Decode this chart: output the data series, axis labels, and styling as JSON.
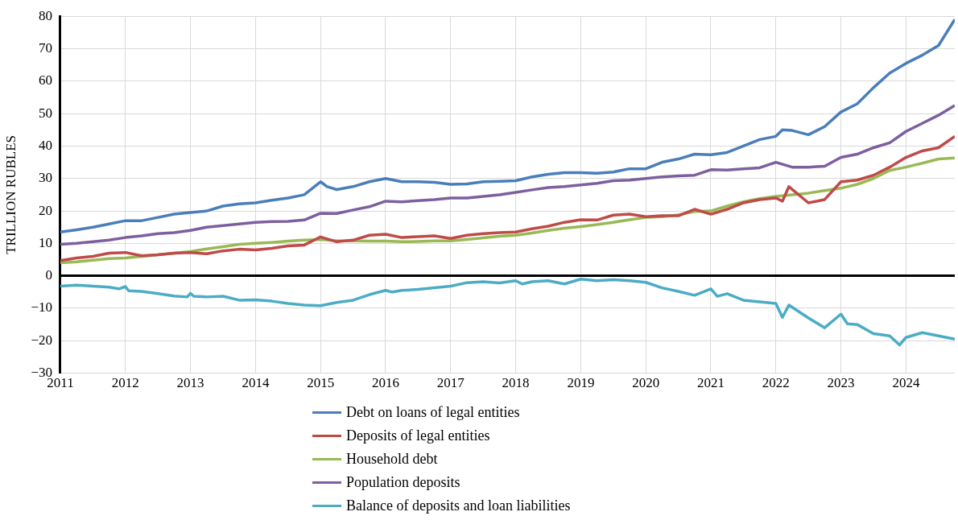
{
  "chart_data": {
    "type": "line",
    "ylabel": "TRILLION RUBLES",
    "xlim": [
      2011,
      2024.75
    ],
    "xticks": [
      2011,
      2012,
      2013,
      2014,
      2015,
      2016,
      2017,
      2018,
      2019,
      2020,
      2021,
      2022,
      2023,
      2024
    ],
    "ylim": [
      -30,
      80
    ],
    "yticks": [
      -30,
      -20,
      -10,
      0,
      10,
      20,
      30,
      40,
      50,
      60,
      70,
      80
    ],
    "grid": true,
    "legend": "bottom",
    "marker": "none",
    "line_style": "solid",
    "series": [
      {
        "name": "Debt on loans of legal entities",
        "color": "#4a7ebb",
        "x": [
          2011,
          2011.25,
          2011.5,
          2011.75,
          2012,
          2012.25,
          2012.5,
          2012.75,
          2013,
          2013.25,
          2013.5,
          2013.75,
          2014,
          2014.25,
          2014.5,
          2014.75,
          2015,
          2015.1,
          2015.25,
          2015.5,
          2015.75,
          2016,
          2016.25,
          2016.5,
          2016.75,
          2017,
          2017.25,
          2017.5,
          2017.75,
          2018,
          2018.25,
          2018.5,
          2018.75,
          2019,
          2019.25,
          2019.5,
          2019.75,
          2020,
          2020.25,
          2020.5,
          2020.75,
          2021,
          2021.25,
          2021.5,
          2021.75,
          2022,
          2022.1,
          2022.25,
          2022.5,
          2022.75,
          2023,
          2023.25,
          2023.5,
          2023.75,
          2024,
          2024.25,
          2024.5,
          2024.75
        ],
        "values": [
          13.5,
          14.2,
          15,
          16,
          17,
          17,
          18,
          19,
          19.5,
          20,
          21.5,
          22.2,
          22.5,
          23.3,
          24,
          25,
          29,
          27.5,
          26.6,
          27.5,
          29,
          30,
          29,
          29,
          28.8,
          28.2,
          28.3,
          29,
          29.1,
          29.3,
          30.5,
          31.3,
          31.8,
          31.8,
          31.6,
          32,
          33,
          33,
          35,
          36,
          37.5,
          37.3,
          38,
          40,
          42,
          43,
          45,
          44.8,
          43.5,
          46,
          50.5,
          53,
          58,
          62.5,
          65.5,
          68,
          71,
          79
        ]
      },
      {
        "name": "Deposits of legal entities",
        "color": "#be4b48",
        "x": [
          2011,
          2011.25,
          2011.5,
          2011.75,
          2012,
          2012.25,
          2012.5,
          2012.75,
          2013,
          2013.25,
          2013.5,
          2013.75,
          2014,
          2014.25,
          2014.5,
          2014.75,
          2015,
          2015.25,
          2015.5,
          2015.75,
          2016,
          2016.25,
          2016.5,
          2016.75,
          2017,
          2017.25,
          2017.5,
          2017.75,
          2018,
          2018.25,
          2018.5,
          2018.75,
          2019,
          2019.25,
          2019.5,
          2019.75,
          2020,
          2020.25,
          2020.5,
          2020.75,
          2021,
          2021.25,
          2021.5,
          2021.75,
          2022,
          2022.1,
          2022.2,
          2022.5,
          2022.75,
          2023,
          2023.25,
          2023.5,
          2023.75,
          2024,
          2024.25,
          2024.5,
          2024.75
        ],
        "values": [
          4.7,
          5.5,
          6,
          7,
          7.2,
          6.2,
          6.5,
          7,
          7.2,
          6.8,
          7.7,
          8.2,
          8,
          8.5,
          9.2,
          9.5,
          12,
          10.5,
          11,
          12.5,
          12.8,
          11.8,
          12.1,
          12.3,
          11.5,
          12.5,
          13,
          13.3,
          13.5,
          14.5,
          15.3,
          16.5,
          17.3,
          17.2,
          18.7,
          19,
          18.2,
          18.5,
          18.5,
          20.5,
          19,
          20.5,
          22.5,
          23.5,
          24,
          23,
          27.5,
          22.5,
          23.5,
          29,
          29.5,
          31,
          33.5,
          36.5,
          38.5,
          39.5,
          43
        ]
      },
      {
        "name": "Household debt",
        "color": "#98b954",
        "x": [
          2011,
          2011.25,
          2011.5,
          2011.75,
          2012,
          2012.25,
          2012.5,
          2012.75,
          2013,
          2013.25,
          2013.5,
          2013.75,
          2014,
          2014.25,
          2014.5,
          2014.75,
          2015,
          2015.25,
          2015.5,
          2015.75,
          2016,
          2016.25,
          2016.5,
          2016.75,
          2017,
          2017.25,
          2017.5,
          2017.75,
          2018,
          2018.25,
          2018.5,
          2018.75,
          2019,
          2019.25,
          2019.5,
          2019.75,
          2020,
          2020.25,
          2020.5,
          2020.75,
          2021,
          2021.25,
          2021.5,
          2021.75,
          2022,
          2022.25,
          2022.5,
          2022.75,
          2023,
          2023.25,
          2023.5,
          2023.75,
          2024,
          2024.25,
          2024.5,
          2024.75
        ],
        "values": [
          4,
          4.3,
          4.8,
          5.3,
          5.5,
          6,
          6.5,
          7,
          7.5,
          8.3,
          9,
          9.7,
          10,
          10.3,
          10.7,
          11,
          11.2,
          10.8,
          10.8,
          10.7,
          10.7,
          10.5,
          10.6,
          10.8,
          10.8,
          11.2,
          11.7,
          12.2,
          12.5,
          13.2,
          14,
          14.7,
          15.2,
          15.8,
          16.5,
          17.3,
          18,
          18.2,
          18.8,
          19.8,
          20,
          21.5,
          22.8,
          23.8,
          24.5,
          25,
          25.5,
          26.3,
          27,
          28.2,
          30,
          32.5,
          33.5,
          34.7,
          36,
          36.3
        ]
      },
      {
        "name": "Population deposits",
        "color": "#7d5fa0",
        "x": [
          2011,
          2011.25,
          2011.5,
          2011.75,
          2012,
          2012.25,
          2012.5,
          2012.75,
          2013,
          2013.25,
          2013.5,
          2013.75,
          2014,
          2014.25,
          2014.5,
          2014.75,
          2015,
          2015.25,
          2015.5,
          2015.75,
          2016,
          2016.25,
          2016.5,
          2016.75,
          2017,
          2017.25,
          2017.5,
          2017.75,
          2018,
          2018.25,
          2018.5,
          2018.75,
          2019,
          2019.25,
          2019.5,
          2019.75,
          2020,
          2020.25,
          2020.5,
          2020.75,
          2021,
          2021.25,
          2021.5,
          2021.75,
          2022,
          2022.25,
          2022.5,
          2022.75,
          2023,
          2023.25,
          2023.5,
          2023.75,
          2024,
          2024.25,
          2024.5,
          2024.75
        ],
        "values": [
          9.7,
          10,
          10.5,
          11,
          11.8,
          12.3,
          13,
          13.3,
          14,
          15,
          15.5,
          16,
          16.5,
          16.7,
          16.8,
          17.2,
          19.3,
          19.2,
          20.3,
          21.3,
          23,
          22.8,
          23.2,
          23.5,
          24,
          24,
          24.5,
          25,
          25.7,
          26.5,
          27.2,
          27.5,
          28,
          28.5,
          29.3,
          29.5,
          30,
          30.5,
          30.8,
          31,
          32.7,
          32.6,
          33,
          33.3,
          35,
          33.5,
          33.5,
          33.8,
          36.5,
          37.5,
          39.5,
          41,
          44.5,
          47,
          49.5,
          52.5
        ]
      },
      {
        "name": "Balance of deposits and loan liabilities",
        "color": "#4bacc6",
        "x": [
          2011,
          2011.25,
          2011.5,
          2011.75,
          2011.9,
          2012,
          2012.05,
          2012.25,
          2012.5,
          2012.75,
          2012.95,
          2013,
          2013.05,
          2013.25,
          2013.5,
          2013.75,
          2014,
          2014.25,
          2014.5,
          2014.75,
          2015,
          2015.25,
          2015.5,
          2015.75,
          2016,
          2016.1,
          2016.25,
          2016.5,
          2016.75,
          2017,
          2017.25,
          2017.5,
          2017.75,
          2018,
          2018.1,
          2018.25,
          2018.5,
          2018.75,
          2019,
          2019.25,
          2019.5,
          2019.75,
          2020,
          2020.25,
          2020.5,
          2020.75,
          2021,
          2021.1,
          2021.25,
          2021.5,
          2021.75,
          2022,
          2022.1,
          2022.2,
          2022.5,
          2022.75,
          2023,
          2023.1,
          2023.25,
          2023.5,
          2023.75,
          2023.9,
          2024,
          2024.25,
          2024.5,
          2024.75
        ],
        "values": [
          -3.2,
          -2.9,
          -3.2,
          -3.5,
          -4,
          -3.3,
          -4.6,
          -4.8,
          -5.5,
          -6.2,
          -6.5,
          -5.4,
          -6.3,
          -6.5,
          -6.3,
          -7.5,
          -7.4,
          -7.8,
          -8.5,
          -9,
          -9.2,
          -8.2,
          -7.5,
          -5.8,
          -4.5,
          -5,
          -4.5,
          -4.2,
          -3.7,
          -3.2,
          -2.1,
          -1.8,
          -2.2,
          -1.5,
          -2.5,
          -1.8,
          -1.5,
          -2.5,
          -1,
          -1.5,
          -1.2,
          -1.5,
          -2,
          -3.7,
          -4.8,
          -6,
          -4,
          -6.3,
          -5.5,
          -7.5,
          -8,
          -8.5,
          -12.8,
          -9,
          -13,
          -16,
          -11.8,
          -14.8,
          -15,
          -17.8,
          -18.5,
          -21.3,
          -19,
          -17.5,
          -18.5,
          -19.5
        ]
      }
    ]
  }
}
